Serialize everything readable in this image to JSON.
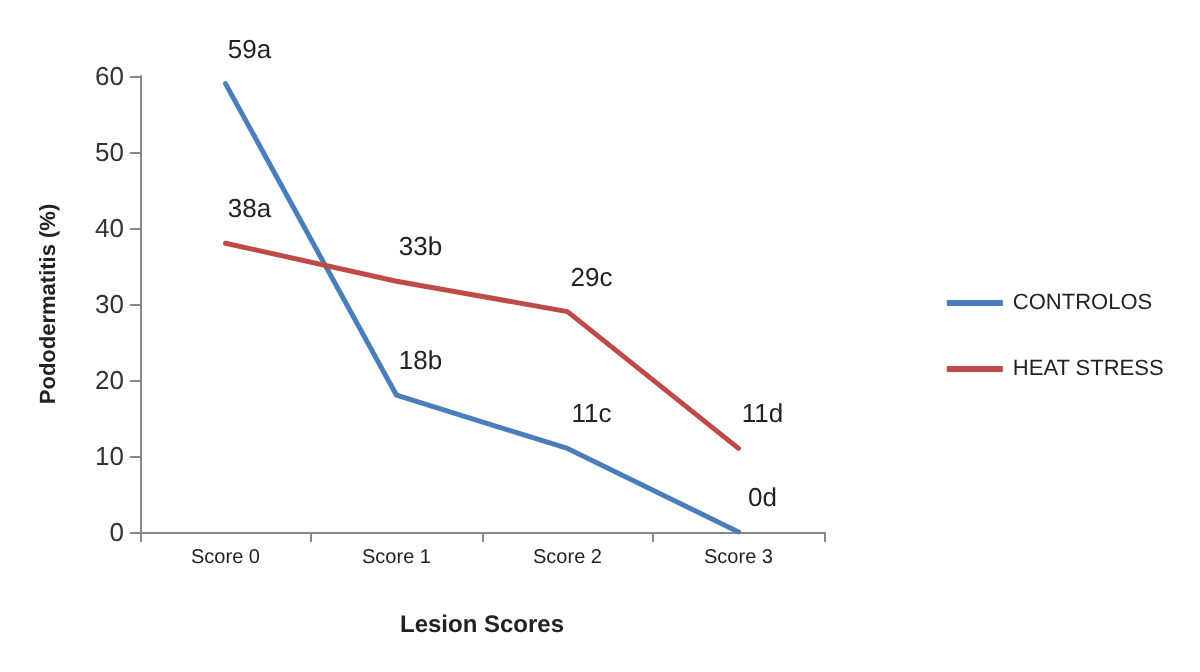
{
  "chart_data": {
    "type": "line",
    "xlabel": "Lesion Scores",
    "ylabel": "Pododermatitis (%)",
    "categories": [
      "Score 0",
      "Score 1",
      "Score 2",
      "Score 3"
    ],
    "series": [
      {
        "name": "CONTROLOS",
        "color": "#4a7ebb",
        "values": [
          59,
          18,
          11,
          0
        ],
        "value_labels": [
          "59a",
          "18b",
          "11c",
          "0d"
        ]
      },
      {
        "name": "HEAT STRESS",
        "color": "#be4b48",
        "values": [
          38,
          33,
          29,
          11
        ],
        "value_labels": [
          "38a",
          "33b",
          "29c",
          "11d"
        ]
      }
    ],
    "ylim": [
      0,
      60
    ],
    "yticks": [
      0,
      10,
      20,
      30,
      40,
      50,
      60
    ],
    "grid": false,
    "legend": "right",
    "marker": "none",
    "line_style": "solid"
  }
}
